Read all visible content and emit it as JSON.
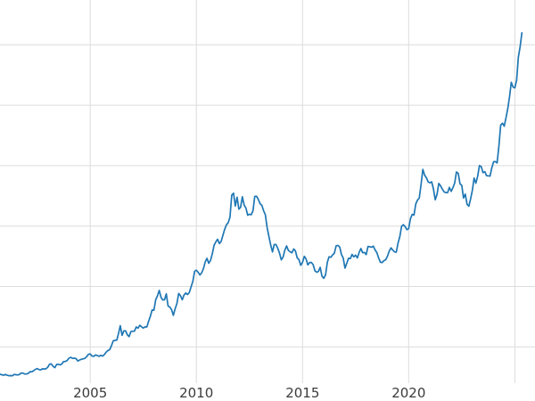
{
  "chart_data": {
    "type": "line",
    "title": "",
    "xlabel": "",
    "ylabel": "",
    "legend": "none",
    "grid": true,
    "series_name": "price",
    "series_color": "#1f77b4",
    "x_start_year": 2000.75,
    "x_step_years": 0.0833333,
    "xlim": [
      2000.75,
      2025.95
    ],
    "ylim": [
      200,
      3150
    ],
    "x_tick_labels": [
      "2005",
      "2010",
      "2015",
      "2020"
    ],
    "x_gridline_years": [
      2005,
      2010,
      2015,
      2020,
      2025
    ],
    "y_gridline_values": [
      500,
      1000,
      1500,
      2000,
      2500,
      3000
    ],
    "values": [
      274,
      270,
      266,
      272,
      266,
      262,
      263,
      261,
      272,
      270,
      268,
      272,
      284,
      283,
      276,
      276,
      281,
      295,
      294,
      303,
      314,
      321,
      313,
      310,
      319,
      317,
      319,
      333,
      357,
      359,
      340,
      328,
      355,
      356,
      351,
      360,
      379,
      379,
      389,
      407,
      414,
      405,
      407,
      403,
      384,
      392,
      398,
      401,
      405,
      420,
      439,
      442,
      424,
      423,
      434,
      429,
      422,
      431,
      424,
      437,
      456,
      470,
      477,
      510,
      550,
      555,
      557,
      611,
      676,
      596,
      634,
      632,
      599,
      586,
      627,
      630,
      631,
      665,
      655,
      679,
      667,
      656,
      665,
      665,
      713,
      755,
      806,
      804,
      890,
      923,
      968,
      910,
      889,
      890,
      940,
      839,
      830,
      807,
      761,
      816,
      859,
      943,
      924,
      890,
      929,
      946,
      934,
      950,
      997,
      1043,
      1127,
      1135,
      1118,
      1095,
      1114,
      1149,
      1205,
      1233,
      1193,
      1216,
      1271,
      1342,
      1370,
      1391,
      1356,
      1373,
      1424,
      1474,
      1511,
      1529,
      1573,
      1756,
      1772,
      1666,
      1739,
      1640,
      1655,
      1743,
      1674,
      1650,
      1590,
      1598,
      1594,
      1626,
      1745,
      1747,
      1721,
      1685,
      1671,
      1628,
      1593,
      1487,
      1414,
      1343,
      1286,
      1347,
      1348,
      1316,
      1276,
      1221,
      1244,
      1300,
      1336,
      1299,
      1288,
      1279,
      1311,
      1295,
      1237,
      1222,
      1176,
      1200,
      1250,
      1227,
      1179,
      1198,
      1199,
      1181,
      1130,
      1118,
      1125,
      1159,
      1086,
      1068,
      1097,
      1200,
      1246,
      1242,
      1261,
      1276,
      1337,
      1340,
      1327,
      1266,
      1236,
      1152,
      1192,
      1234,
      1231,
      1266,
      1246,
      1260,
      1237,
      1283,
      1314,
      1280,
      1282,
      1264,
      1331,
      1330,
      1325,
      1334,
      1303,
      1281,
      1238,
      1201,
      1198,
      1215,
      1221,
      1250,
      1292,
      1320,
      1301,
      1286,
      1284,
      1359,
      1413,
      1499,
      1511,
      1495,
      1471,
      1479,
      1561,
      1597,
      1592,
      1683,
      1716,
      1732,
      1843,
      1969,
      1922,
      1900,
      1866,
      1858,
      1867,
      1808,
      1718,
      1762,
      1853,
      1835,
      1807,
      1784,
      1777,
      1777,
      1820,
      1787,
      1817,
      1856,
      1948,
      1937,
      1850,
      1837,
      1733,
      1765,
      1681,
      1665,
      1726,
      1798,
      1898,
      1855,
      1913,
      2000,
      1992,
      1943,
      1951,
      1918,
      1916,
      1914,
      1984,
      2033,
      2034,
      2023,
      2161,
      2335,
      2351,
      2327,
      2398,
      2470,
      2568,
      2690,
      2651,
      2644,
      2708,
      2897,
      2984,
      3100
    ]
  },
  "colors": {
    "background": "#ffffff",
    "grid": "#dcdcdc",
    "tick_label": "#3b3b3b"
  }
}
